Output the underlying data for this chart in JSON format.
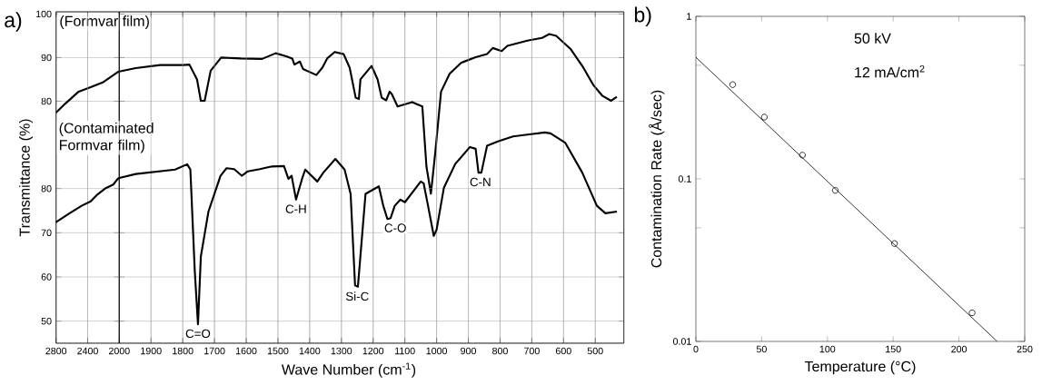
{
  "chart_data": [
    {
      "type": "line",
      "title": "(Formvar film)",
      "annotations": [
        "a)"
      ],
      "color": "#000000",
      "grid": true,
      "tick_labels": "y",
      "xlim": [
        2800,
        2000
      ],
      "xticks": [
        2800,
        2400,
        2000
      ],
      "ylim": [
        24.5,
        100.5
      ],
      "yticks": [
        80,
        90,
        100
      ],
      "x": [
        2800,
        2686,
        2514,
        2362,
        2210,
        2019,
        2000
      ],
      "values": [
        77.4,
        79.4,
        82.2,
        83.2,
        84.3,
        86.7,
        86.8
      ]
    },
    {
      "type": "line",
      "color": "#000000",
      "grid": true,
      "tick_labels": false,
      "xlim": [
        2000,
        410
      ],
      "xticks": [
        1900,
        1800,
        1700,
        1600,
        1500,
        1400,
        1300,
        1200,
        1100,
        1000,
        900,
        800,
        700,
        600,
        500
      ],
      "ylim": [
        24.5,
        100.5
      ],
      "yticks": [
        80,
        90,
        100
      ],
      "x": [
        2000,
        1948,
        1871,
        1798,
        1779,
        1755,
        1743,
        1731,
        1712,
        1679,
        1617,
        1550,
        1507,
        1474,
        1455,
        1448,
        1431,
        1421,
        1379,
        1360,
        1345,
        1321,
        1293,
        1274,
        1255,
        1245,
        1240,
        1205,
        1186,
        1173,
        1159,
        1148,
        1141,
        1123,
        1077,
        1045,
        1032,
        1018,
        1004,
        986,
        959,
        923,
        877,
        841,
        823,
        795,
        777,
        714,
        668,
        645,
        623,
        577,
        541,
        505,
        477,
        450,
        432
      ],
      "values": [
        86.8,
        87.6,
        88.3,
        88.3,
        88.4,
        85.0,
        80.1,
        80.1,
        87.0,
        90.0,
        89.8,
        89.7,
        91.0,
        90.3,
        89.8,
        88.4,
        89.1,
        87.4,
        86.0,
        87.7,
        89.8,
        91.3,
        90.8,
        87.7,
        80.8,
        80.5,
        85.0,
        88.1,
        85.0,
        80.8,
        80.2,
        82.2,
        81.6,
        78.8,
        79.8,
        78.8,
        65.0,
        58.8,
        68.4,
        82.2,
        86.3,
        88.8,
        90.1,
        90.8,
        92.2,
        91.5,
        92.7,
        93.9,
        94.5,
        95.4,
        95.0,
        91.9,
        88.1,
        83.6,
        81.2,
        80.1,
        81.0
      ]
    },
    {
      "type": "line",
      "title": "(Contaminated Formvar film)",
      "ylabel": "Transmittance (%)",
      "color": "#000000",
      "grid": true,
      "xlim": [
        2800,
        2000
      ],
      "xticks": [
        2800,
        2400,
        2000
      ],
      "ylim": [
        45,
        120
      ],
      "yticks": [
        50,
        60,
        70,
        80
      ],
      "x": [
        2800,
        2629,
        2476,
        2362,
        2286,
        2171,
        2076,
        2019,
        2000
      ],
      "values": [
        72.4,
        74.4,
        76.1,
        77.1,
        78.5,
        80.1,
        80.9,
        82.2,
        82.4
      ]
    },
    {
      "type": "line",
      "xlabel": "Wave Number (cm$^{-1}$)",
      "color": "#000000",
      "grid": true,
      "tick_labels": "x",
      "annotations": [
        {
          "text": "C=O",
          "x": 1752,
          "y": 49.3
        },
        {
          "text": "C-H",
          "x": 1443,
          "y": 77.5
        },
        {
          "text": "Si-C",
          "x": 1250,
          "y": 57.8
        },
        {
          "text": "C-O",
          "x": 1130,
          "y": 73.2
        },
        {
          "text": "C-N",
          "x": 862,
          "y": 83.6
        }
      ],
      "xlim": [
        2000,
        410
      ],
      "xticks": [
        1900,
        1800,
        1700,
        1600,
        1500,
        1400,
        1300,
        1200,
        1100,
        1000,
        900,
        800,
        700,
        600,
        500
      ],
      "ylim": [
        45,
        120
      ],
      "yticks": [
        50,
        60,
        70,
        80
      ],
      "x": [
        2000,
        1948,
        1824,
        1786,
        1776,
        1762,
        1752,
        1743,
        1719,
        1681,
        1662,
        1638,
        1614,
        1595,
        1557,
        1519,
        1481,
        1467,
        1457,
        1443,
        1424,
        1414,
        1376,
        1357,
        1319,
        1290,
        1271,
        1257,
        1248,
        1224,
        1182,
        1168,
        1155,
        1145,
        1132,
        1114,
        1100,
        1068,
        1050,
        1041,
        1027,
        1009,
        1000,
        977,
        941,
        895,
        877,
        868,
        859,
        841,
        805,
        759,
        714,
        659,
        641,
        595,
        541,
        495,
        468,
        432
      ],
      "values": [
        82.4,
        83.3,
        84.3,
        85.5,
        84.3,
        61.2,
        49.3,
        64.6,
        74.8,
        82.9,
        84.6,
        84.4,
        82.9,
        83.9,
        84.4,
        85.0,
        85.1,
        82.2,
        82.9,
        77.5,
        82.2,
        84.3,
        81.6,
        83.6,
        86.7,
        84.3,
        78.8,
        58.1,
        57.8,
        78.8,
        80.5,
        76.1,
        73.1,
        73.3,
        76.1,
        77.5,
        76.9,
        79.9,
        81.6,
        81.2,
        76.1,
        69.3,
        70.7,
        80.2,
        85.6,
        89.4,
        89.0,
        83.6,
        83.6,
        89.7,
        90.7,
        91.8,
        92.2,
        92.7,
        92.5,
        90.4,
        83.6,
        76.1,
        74.4,
        74.8
      ]
    },
    {
      "type": "scatter",
      "xlabel": "Temperature (°C)",
      "ylabel": "Contamination Rate (Å/sec)",
      "annotations": [
        "b)",
        "50 kV",
        "12 mA/cm$^{2}$"
      ],
      "log": "y",
      "xlim": [
        0,
        250
      ],
      "xticks": [
        0,
        50,
        100,
        150,
        200,
        250
      ],
      "ylim": [
        0.01,
        1
      ],
      "yticks": [
        0.01,
        {
          "value": 0.05,
          "label": null
        },
        0.1,
        {
          "value": 0.5,
          "label": null
        },
        1
      ],
      "series": [
        {
          "type": "scatter",
          "marker": "circle",
          "color": "#000000",
          "x": [
            28,
            52,
            81,
            106,
            151,
            210
          ],
          "values": [
            0.38,
            0.24,
            0.14,
            0.085,
            0.04,
            0.015
          ]
        },
        {
          "type": "line",
          "color": "#000000",
          "x": [
            0,
            229
          ],
          "values": [
            0.56,
            0.01
          ]
        }
      ]
    }
  ]
}
